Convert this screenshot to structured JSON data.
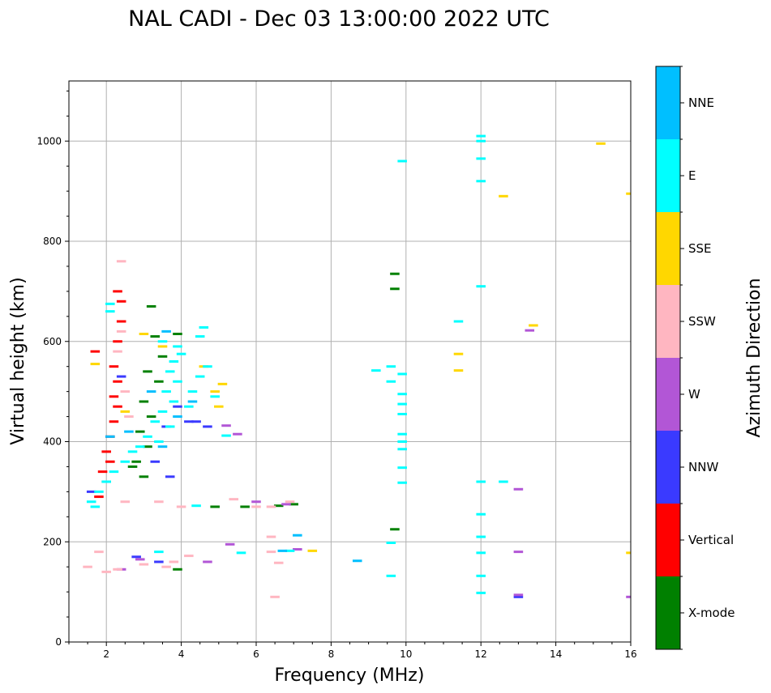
{
  "chart_data": {
    "type": "scatter",
    "title": "NAL CADI - Dec 03 13:00:00 2022 UTC",
    "xlabel": "Frequency (MHz)",
    "ylabel": "Virtual height (km)",
    "xlim": [
      1,
      16
    ],
    "ylim": [
      0,
      1120
    ],
    "xticks": [
      2,
      4,
      6,
      8,
      10,
      12,
      14,
      16
    ],
    "yticks": [
      0,
      200,
      400,
      600,
      800,
      1000
    ],
    "x_minor_step": 0.5,
    "y_minor_step": 50,
    "grid": true,
    "colorbar": {
      "label": "Azimuth Direction",
      "categories": [
        "X-mode",
        "Vertical",
        "NNW",
        "W",
        "SSW",
        "SSE",
        "E",
        "NNE"
      ],
      "colors": [
        "#008000",
        "#ff0000",
        "#3a3aff",
        "#b256d6",
        "#ffb6c1",
        "#ffd700",
        "#00ffff",
        "#00bfff"
      ]
    },
    "segment_width_mhz": 0.25,
    "points": [
      [
        9.7,
        735,
        "X-mode"
      ],
      [
        9.7,
        705,
        "X-mode"
      ],
      [
        9.7,
        225,
        "X-mode"
      ],
      [
        3.2,
        670,
        "X-mode"
      ],
      [
        3.3,
        610,
        "X-mode"
      ],
      [
        3.9,
        615,
        "X-mode"
      ],
      [
        3.5,
        570,
        "X-mode"
      ],
      [
        3.1,
        540,
        "X-mode"
      ],
      [
        3.4,
        520,
        "X-mode"
      ],
      [
        3.0,
        480,
        "X-mode"
      ],
      [
        3.2,
        450,
        "X-mode"
      ],
      [
        2.9,
        420,
        "X-mode"
      ],
      [
        3.1,
        390,
        "X-mode"
      ],
      [
        2.8,
        360,
        "X-mode"
      ],
      [
        3.0,
        330,
        "X-mode"
      ],
      [
        2.7,
        350,
        "X-mode"
      ],
      [
        4.9,
        270,
        "X-mode"
      ],
      [
        5.7,
        270,
        "X-mode"
      ],
      [
        6.6,
        272,
        "X-mode"
      ],
      [
        7.0,
        275,
        "X-mode"
      ],
      [
        3.9,
        145,
        "X-mode"
      ],
      [
        2.3,
        700,
        "Vertical"
      ],
      [
        2.4,
        680,
        "Vertical"
      ],
      [
        2.4,
        640,
        "Vertical"
      ],
      [
        2.3,
        600,
        "Vertical"
      ],
      [
        2.2,
        550,
        "Vertical"
      ],
      [
        2.3,
        520,
        "Vertical"
      ],
      [
        2.2,
        490,
        "Vertical"
      ],
      [
        2.3,
        470,
        "Vertical"
      ],
      [
        2.2,
        440,
        "Vertical"
      ],
      [
        2.1,
        410,
        "Vertical"
      ],
      [
        2.0,
        380,
        "Vertical"
      ],
      [
        2.1,
        360,
        "Vertical"
      ],
      [
        1.9,
        340,
        "Vertical"
      ],
      [
        2.0,
        320,
        "Vertical"
      ],
      [
        1.7,
        580,
        "Vertical"
      ],
      [
        1.8,
        290,
        "Vertical"
      ],
      [
        3.3,
        360,
        "NNW"
      ],
      [
        3.6,
        430,
        "NNW"
      ],
      [
        4.2,
        440,
        "NNW"
      ],
      [
        4.4,
        440,
        "NNW"
      ],
      [
        3.9,
        470,
        "NNW"
      ],
      [
        4.7,
        430,
        "NNW"
      ],
      [
        3.7,
        330,
        "NNW"
      ],
      [
        3.4,
        160,
        "NNW"
      ],
      [
        2.8,
        170,
        "NNW"
      ],
      [
        1.6,
        300,
        "NNW"
      ],
      [
        13.0,
        90,
        "NNW"
      ],
      [
        2.4,
        530,
        "NNW"
      ],
      [
        5.2,
        432,
        "W"
      ],
      [
        5.5,
        415,
        "W"
      ],
      [
        6.0,
        280,
        "W"
      ],
      [
        6.8,
        275,
        "W"
      ],
      [
        5.3,
        195,
        "W"
      ],
      [
        7.1,
        185,
        "W"
      ],
      [
        13.0,
        305,
        "W"
      ],
      [
        13.0,
        180,
        "W"
      ],
      [
        13.0,
        94,
        "W"
      ],
      [
        13.3,
        622,
        "W"
      ],
      [
        16.0,
        90,
        "W"
      ],
      [
        2.9,
        165,
        "W"
      ],
      [
        4.7,
        160,
        "W"
      ],
      [
        2.4,
        145,
        "W"
      ],
      [
        2.4,
        760,
        "SSW"
      ],
      [
        2.4,
        620,
        "SSW"
      ],
      [
        2.3,
        580,
        "SSW"
      ],
      [
        2.5,
        500,
        "SSW"
      ],
      [
        2.6,
        450,
        "SSW"
      ],
      [
        3.4,
        280,
        "SSW"
      ],
      [
        4.0,
        270,
        "SSW"
      ],
      [
        5.4,
        285,
        "SSW"
      ],
      [
        6.0,
        270,
        "SSW"
      ],
      [
        6.4,
        270,
        "SSW"
      ],
      [
        6.9,
        280,
        "SSW"
      ],
      [
        6.4,
        210,
        "SSW"
      ],
      [
        6.4,
        180,
        "SSW"
      ],
      [
        6.6,
        158,
        "SSW"
      ],
      [
        6.5,
        90,
        "SSW"
      ],
      [
        1.5,
        150,
        "SSW"
      ],
      [
        1.8,
        180,
        "SSW"
      ],
      [
        2.0,
        140,
        "SSW"
      ],
      [
        2.3,
        145,
        "SSW"
      ],
      [
        3.0,
        155,
        "SSW"
      ],
      [
        3.6,
        150,
        "SSW"
      ],
      [
        3.8,
        160,
        "SSW"
      ],
      [
        4.2,
        172,
        "SSW"
      ],
      [
        2.5,
        280,
        "SSW"
      ],
      [
        3.0,
        615,
        "SSE"
      ],
      [
        3.5,
        590,
        "SSE"
      ],
      [
        2.5,
        460,
        "SSE"
      ],
      [
        4.6,
        550,
        "SSE"
      ],
      [
        4.9,
        500,
        "SSE"
      ],
      [
        5.0,
        470,
        "SSE"
      ],
      [
        5.1,
        515,
        "SSE"
      ],
      [
        1.7,
        555,
        "SSE"
      ],
      [
        11.4,
        575,
        "SSE"
      ],
      [
        11.4,
        542,
        "SSE"
      ],
      [
        12.6,
        890,
        "SSE"
      ],
      [
        13.4,
        632,
        "SSE"
      ],
      [
        15.2,
        995,
        "SSE"
      ],
      [
        16.0,
        895,
        "SSE"
      ],
      [
        16.0,
        178,
        "SSE"
      ],
      [
        7.5,
        182,
        "SSE"
      ],
      [
        2.1,
        675,
        "E"
      ],
      [
        2.1,
        660,
        "E"
      ],
      [
        3.5,
        600,
        "E"
      ],
      [
        3.9,
        590,
        "E"
      ],
      [
        4.0,
        575,
        "E"
      ],
      [
        3.8,
        560,
        "E"
      ],
      [
        3.7,
        540,
        "E"
      ],
      [
        3.9,
        520,
        "E"
      ],
      [
        3.6,
        500,
        "E"
      ],
      [
        3.8,
        480,
        "E"
      ],
      [
        3.5,
        460,
        "E"
      ],
      [
        4.2,
        470,
        "E"
      ],
      [
        3.3,
        440,
        "E"
      ],
      [
        3.7,
        430,
        "E"
      ],
      [
        3.1,
        410,
        "E"
      ],
      [
        3.4,
        400,
        "E"
      ],
      [
        2.9,
        390,
        "E"
      ],
      [
        2.7,
        380,
        "E"
      ],
      [
        2.5,
        360,
        "E"
      ],
      [
        2.2,
        340,
        "E"
      ],
      [
        2.0,
        320,
        "E"
      ],
      [
        1.8,
        300,
        "E"
      ],
      [
        1.6,
        280,
        "E"
      ],
      [
        1.7,
        270,
        "E"
      ],
      [
        4.5,
        610,
        "E"
      ],
      [
        4.6,
        628,
        "E"
      ],
      [
        4.5,
        530,
        "E"
      ],
      [
        4.3,
        500,
        "E"
      ],
      [
        4.7,
        550,
        "E"
      ],
      [
        4.9,
        490,
        "E"
      ],
      [
        5.2,
        412,
        "E"
      ],
      [
        9.6,
        550,
        "E"
      ],
      [
        9.9,
        535,
        "E"
      ],
      [
        9.6,
        520,
        "E"
      ],
      [
        9.9,
        495,
        "E"
      ],
      [
        9.9,
        475,
        "E"
      ],
      [
        9.9,
        455,
        "E"
      ],
      [
        9.9,
        415,
        "E"
      ],
      [
        9.9,
        400,
        "E"
      ],
      [
        9.9,
        385,
        "E"
      ],
      [
        9.9,
        348,
        "E"
      ],
      [
        9.9,
        318,
        "E"
      ],
      [
        9.6,
        198,
        "E"
      ],
      [
        9.6,
        132,
        "E"
      ],
      [
        9.9,
        960,
        "E"
      ],
      [
        9.2,
        542,
        "E"
      ],
      [
        12.0,
        1010,
        "E"
      ],
      [
        12.0,
        1000,
        "E"
      ],
      [
        12.0,
        965,
        "E"
      ],
      [
        12.0,
        920,
        "E"
      ],
      [
        12.0,
        710,
        "E"
      ],
      [
        11.4,
        640,
        "E"
      ],
      [
        12.0,
        320,
        "E"
      ],
      [
        12.6,
        320,
        "E"
      ],
      [
        12.0,
        255,
        "E"
      ],
      [
        12.0,
        210,
        "E"
      ],
      [
        12.0,
        178,
        "E"
      ],
      [
        12.0,
        132,
        "E"
      ],
      [
        12.0,
        98,
        "E"
      ],
      [
        4.4,
        272,
        "E"
      ],
      [
        5.6,
        178,
        "E"
      ],
      [
        6.9,
        182,
        "E"
      ],
      [
        3.4,
        180,
        "E"
      ],
      [
        4.3,
        480,
        "NNE"
      ],
      [
        3.9,
        450,
        "NNE"
      ],
      [
        2.1,
        410,
        "NNE"
      ],
      [
        2.6,
        420,
        "NNE"
      ],
      [
        7.1,
        213,
        "NNE"
      ],
      [
        8.7,
        162,
        "NNE"
      ],
      [
        3.2,
        500,
        "NNE"
      ],
      [
        3.5,
        390,
        "NNE"
      ],
      [
        3.6,
        620,
        "NNE"
      ],
      [
        6.7,
        182,
        "NNE"
      ]
    ]
  }
}
